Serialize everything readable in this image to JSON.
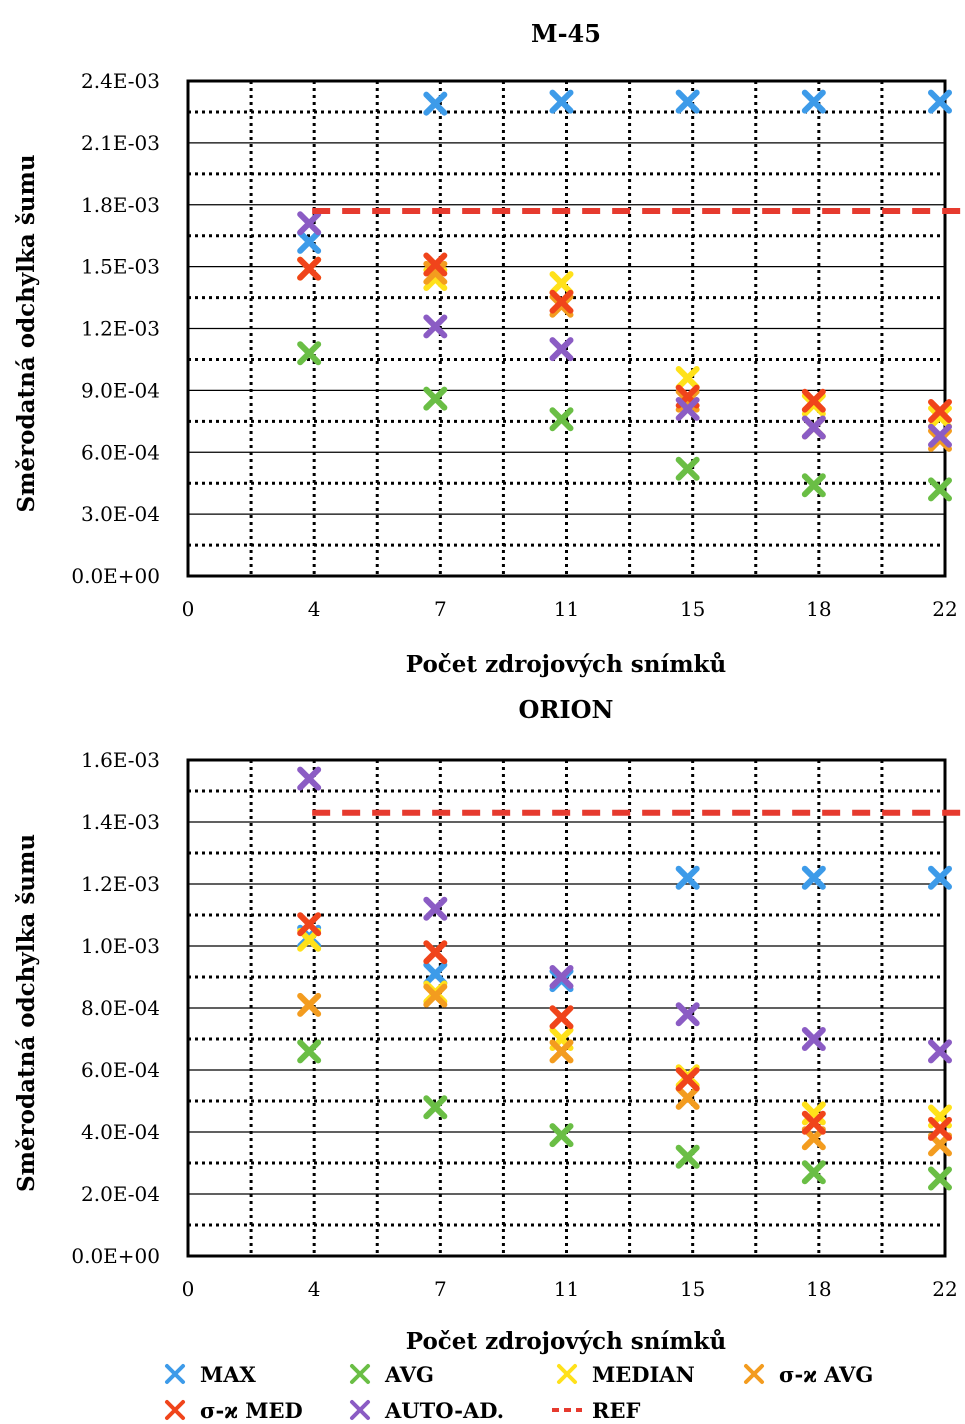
{
  "chart_data": [
    {
      "type": "scatter",
      "title": "M-45",
      "xlabel": "Počet zdrojových snímků",
      "ylabel": "Směrodatná odchylka šumu",
      "ylim": [
        0,
        0.0024
      ],
      "ytick_labels": [
        "0.0E+00",
        "3.0E-04",
        "6.0E-04",
        "9.0E-04",
        "1.2E-03",
        "1.5E-03",
        "1.8E-03",
        "2.1E-03",
        "2.4E-03"
      ],
      "xtick_labels": [
        "0",
        "4",
        "7",
        "11",
        "15",
        "18",
        "22"
      ],
      "grid": true,
      "x": [
        3,
        5,
        7,
        9,
        11,
        13,
        15,
        17
      ],
      "series": [
        {
          "name": "MAX",
          "color": "#3d9be9",
          "values": [
            0.00162,
            0.00229,
            0.0023,
            0.0023,
            0.0023,
            0.0023,
            0.0023,
            0.0023
          ]
        },
        {
          "name": "AVG",
          "color": "#6abe45",
          "values": [
            0.00108,
            0.00086,
            0.00076,
            0.00052,
            0.00044,
            0.00042,
            0.00038,
            0.00035
          ]
        },
        {
          "name": "MEDIAN",
          "color": "#ffe11a",
          "values": [
            0.00149,
            0.00144,
            0.00142,
            0.00096,
            0.00083,
            0.00077,
            0.00078,
            0.00083
          ]
        },
        {
          "name": "σ-ϰ AVG",
          "color": "#f39c1f",
          "values": [
            0.00149,
            0.00147,
            0.00131,
            0.00085,
            0.00072,
            0.00066,
            0.00062,
            0.0007
          ]
        },
        {
          "name": "σ-ϰ MED",
          "color": "#f0441b",
          "values": [
            0.00149,
            0.00151,
            0.00133,
            0.00087,
            0.00085,
            0.0008,
            0.00072,
            0.00094
          ]
        },
        {
          "name": "AUTO-AD.",
          "color": "#8b5cc4",
          "values": [
            0.00171,
            0.00121,
            0.0011,
            0.00081,
            0.00072,
            0.00068,
            0.00067,
            0.0006
          ]
        },
        {
          "name": "REF",
          "color": "#e63a2e",
          "type": "line",
          "values": [
            0.00177,
            0.00177,
            0.00177,
            0.00177,
            0.00177,
            0.00177,
            0.00177,
            0.00177
          ]
        }
      ]
    },
    {
      "type": "scatter",
      "title": "ORION",
      "xlabel": "Počet zdrojových snímků",
      "ylabel": "Směrodatná odchylka šumu",
      "ylim": [
        0,
        0.0016
      ],
      "ytick_labels": [
        "0.0E+00",
        "2.0E-04",
        "4.0E-04",
        "6.0E-04",
        "8.0E-04",
        "1.0E-03",
        "1.2E-03",
        "1.4E-03",
        "1.6E-03"
      ],
      "xtick_labels": [
        "0",
        "4",
        "7",
        "11",
        "15",
        "18",
        "22"
      ],
      "grid": true,
      "x": [
        3,
        5,
        7,
        9,
        11,
        13,
        15,
        17
      ],
      "series": [
        {
          "name": "MAX",
          "color": "#3d9be9",
          "values": [
            0.00103,
            0.00091,
            0.00089,
            0.00122,
            0.00122,
            0.00122,
            0.0012,
            0.00115
          ]
        },
        {
          "name": "AVG",
          "color": "#6abe45",
          "values": [
            0.00066,
            0.00048,
            0.00039,
            0.00032,
            0.00027,
            0.00025,
            0.00023,
            0.00022
          ]
        },
        {
          "name": "MEDIAN",
          "color": "#ffe11a",
          "values": [
            0.00102,
            0.00085,
            0.0007,
            0.00058,
            0.00046,
            0.00045,
            0.00042,
            0.00041
          ]
        },
        {
          "name": "σ-ϰ AVG",
          "color": "#f39c1f",
          "values": [
            0.00081,
            0.00084,
            0.00066,
            0.00051,
            0.00038,
            0.00036,
            0.00033,
            0.00033
          ]
        },
        {
          "name": "σ-ϰ MED",
          "color": "#f0441b",
          "values": [
            0.00107,
            0.00098,
            0.00077,
            0.00057,
            0.00043,
            0.00041,
            0.0004,
            0.0004
          ]
        },
        {
          "name": "AUTO-AD.",
          "color": "#8b5cc4",
          "values": [
            0.00154,
            0.00112,
            0.0009,
            0.00078,
            0.0007,
            0.00066,
            0.00065,
            0.00062
          ]
        },
        {
          "name": "REF",
          "color": "#e63a2e",
          "type": "line",
          "values": [
            0.00143,
            0.00143,
            0.00143,
            0.00143,
            0.00143,
            0.00143,
            0.00143,
            0.00143
          ]
        }
      ]
    }
  ],
  "legend": {
    "placement": "bottom",
    "items": [
      {
        "label": "MAX",
        "color": "#3d9be9",
        "marker": "x"
      },
      {
        "label": "AVG",
        "color": "#6abe45",
        "marker": "x"
      },
      {
        "label": "MEDIAN",
        "color": "#ffe11a",
        "marker": "x"
      },
      {
        "label": "σ-ϰ AVG",
        "color": "#f39c1f",
        "marker": "x"
      },
      {
        "label": "σ-ϰ MED",
        "color": "#f0441b",
        "marker": "x"
      },
      {
        "label": "AUTO-AD.",
        "color": "#8b5cc4",
        "marker": "x"
      },
      {
        "label": "REF",
        "color": "#e63a2e",
        "marker": "dash"
      }
    ]
  }
}
